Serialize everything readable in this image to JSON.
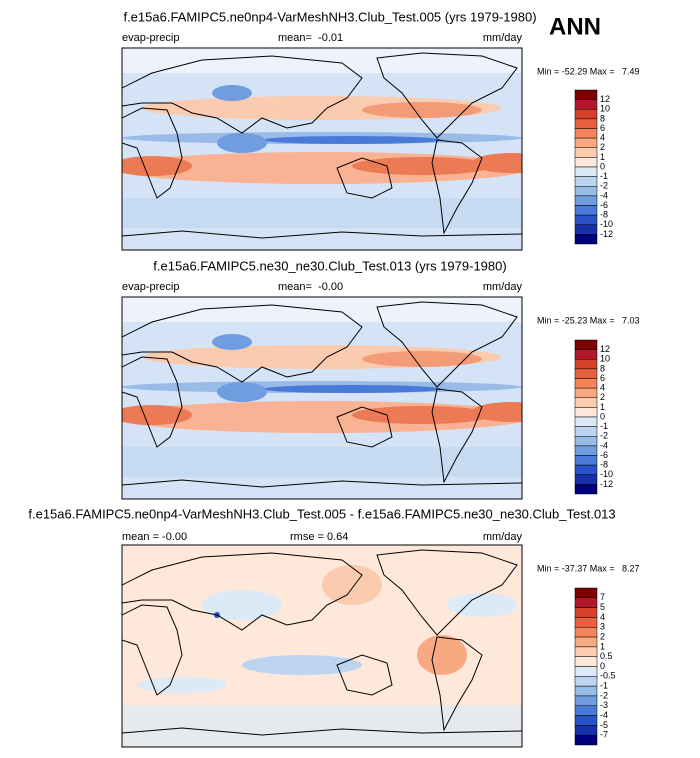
{
  "header": {
    "season": "ANN"
  },
  "panels": [
    {
      "title": "f.e15a6.FAMIPC5.ne0np4-VarMeshNH3.Club_Test.005 (yrs 1979-1980)",
      "left": "evap-precip",
      "center": "mean=  -0.01",
      "right": "mm/day",
      "min_max": "Min = -52.29 Max =   7.49",
      "colorbar_labels": [
        "12",
        "10",
        "8",
        "6",
        "4",
        "2",
        "1",
        "0",
        "-1",
        "-2",
        "-4",
        "-6",
        "-8",
        "-10",
        "-12"
      ]
    },
    {
      "title": "f.e15a6.FAMIPC5.ne30_ne30.Club_Test.013 (yrs 1979-1980)",
      "left": "evap-precip",
      "center": "mean=  -0.00",
      "right": "mm/day",
      "min_max": "Min = -25.23 Max =   7.03",
      "colorbar_labels": [
        "12",
        "10",
        "8",
        "6",
        "4",
        "2",
        "1",
        "0",
        "-1",
        "-2",
        "-4",
        "-6",
        "-8",
        "-10",
        "-12"
      ]
    },
    {
      "title": "f.e15a6.FAMIPC5.ne0np4-VarMeshNH3.Club_Test.005 - f.e15a6.FAMIPC5.ne30_ne30.Club_Test.013",
      "left": "mean = -0.00",
      "center": "rmse = 0.64",
      "right": "mm/day",
      "min_max": "Min = -37.37 Max =   8.27",
      "colorbar_labels": [
        "7",
        "5",
        "4",
        "3",
        "2",
        "1",
        "0.5",
        "0",
        "-0.5",
        "-1",
        "-2",
        "-3",
        "-4",
        "-5",
        "-7"
      ]
    }
  ]
}
